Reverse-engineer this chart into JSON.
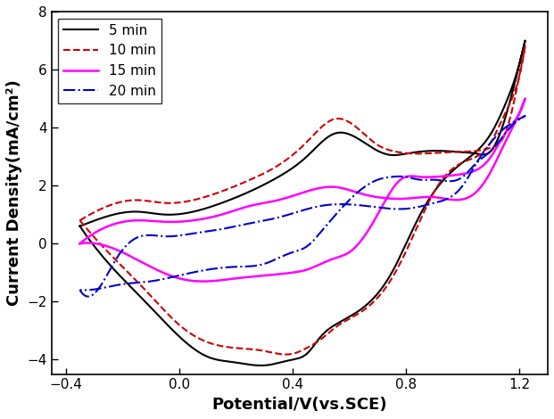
{
  "title": "",
  "xlabel": "Potential/V(vs.SCE)",
  "ylabel": "Current Density(mA/cm²)",
  "xlim": [
    -0.45,
    1.3
  ],
  "ylim": [
    -4.5,
    8.0
  ],
  "xticks": [
    -0.4,
    0.0,
    0.4,
    0.8,
    1.2
  ],
  "yticks": [
    -4,
    -2,
    0,
    2,
    4,
    6,
    8
  ],
  "background_color": "#ffffff",
  "curves": [
    {
      "label": "5 min",
      "color": "#000000",
      "linestyle": "solid",
      "linewidth": 1.5
    },
    {
      "label": "10 min",
      "color": "#cc0000",
      "linestyle": "dashed",
      "linewidth": 1.5
    },
    {
      "label": "15 min",
      "color": "#ff00ff",
      "linestyle": "solid",
      "linewidth": 1.8
    },
    {
      "label": "20 min",
      "color": "#0000cc",
      "linestyle": "dashdot",
      "linewidth": 1.5
    }
  ]
}
